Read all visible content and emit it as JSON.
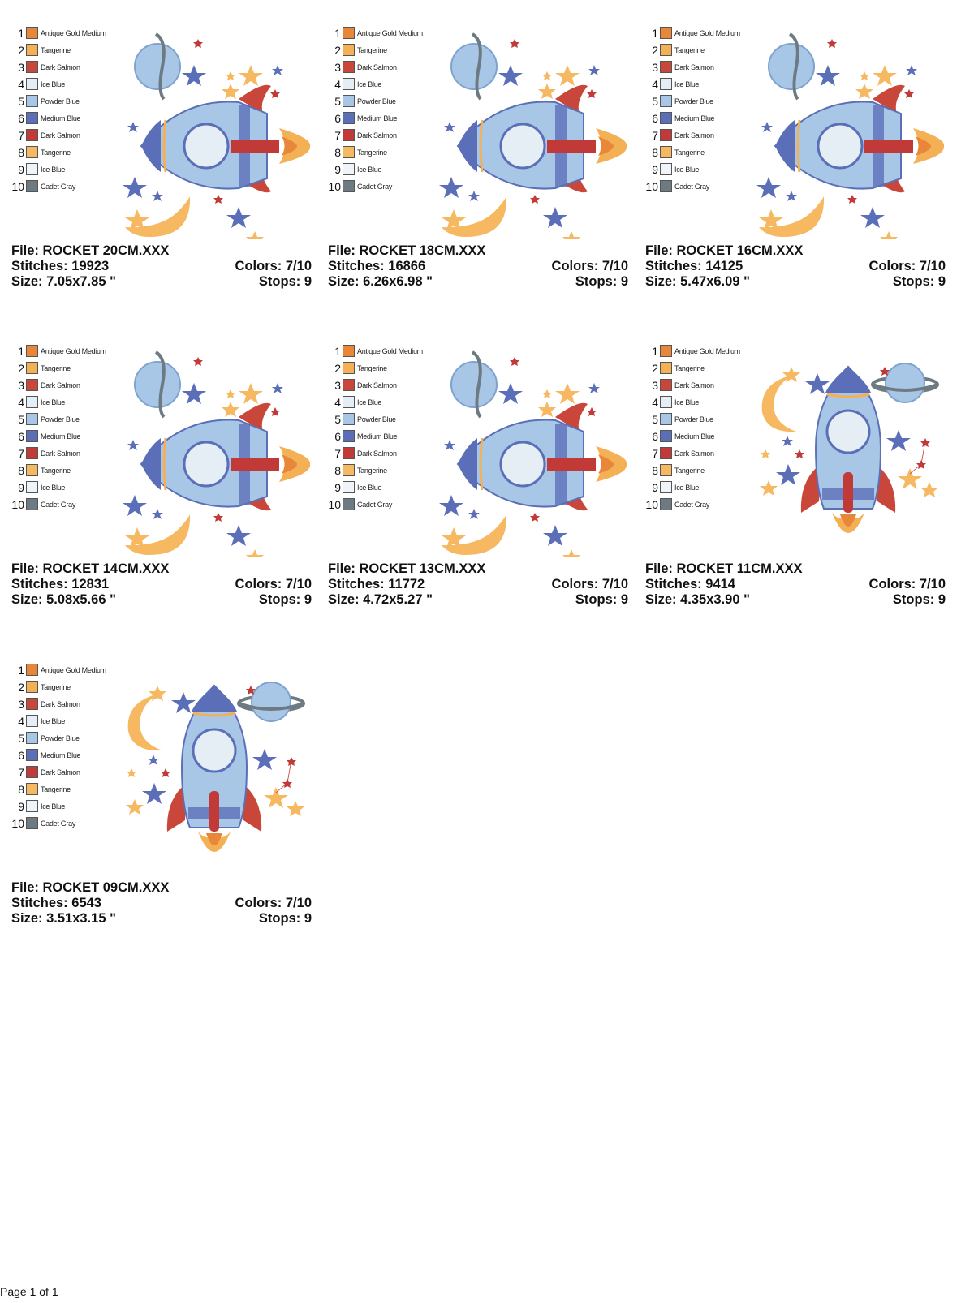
{
  "legend": [
    {
      "num": "1",
      "name": "Antique Gold Medium",
      "color": "#E8873A"
    },
    {
      "num": "2",
      "name": "Tangerine",
      "color": "#F4B055"
    },
    {
      "num": "3",
      "name": "Dark Salmon",
      "color": "#C8473A"
    },
    {
      "num": "4",
      "name": "Ice Blue",
      "color": "#E4EEF4"
    },
    {
      "num": "5",
      "name": "Powder Blue",
      "color": "#A8C6E6"
    },
    {
      "num": "6",
      "name": "Medium Blue",
      "color": "#5B6FB8"
    },
    {
      "num": "7",
      "name": "Dark Salmon",
      "color": "#C23A38"
    },
    {
      "num": "8",
      "name": "Tangerine",
      "color": "#F6B860"
    },
    {
      "num": "9",
      "name": "Ice Blue",
      "color": "#EEF4F8"
    },
    {
      "num": "10",
      "name": "Cadet Gray",
      "color": "#6E7A82"
    }
  ],
  "designs": [
    {
      "file": "File: ROCKET 20CM.XXX",
      "stitches": "Stitches: 19923",
      "colors": "Colors: 7/10",
      "size": "Size: 7.05x7.85 \"",
      "stops": "Stops: 9",
      "orientation": "horizontal"
    },
    {
      "file": "File: ROCKET 18CM.XXX",
      "stitches": "Stitches: 16866",
      "colors": "Colors: 7/10",
      "size": "Size: 6.26x6.98 \"",
      "stops": "Stops: 9",
      "orientation": "horizontal"
    },
    {
      "file": "File: ROCKET 16CM.XXX",
      "stitches": "Stitches: 14125",
      "colors": "Colors: 7/10",
      "size": "Size: 5.47x6.09 \"",
      "stops": "Stops: 9",
      "orientation": "horizontal"
    },
    {
      "file": "File: ROCKET 14CM.XXX",
      "stitches": "Stitches: 12831",
      "colors": "Colors: 7/10",
      "size": "Size: 5.08x5.66 \"",
      "stops": "Stops: 9",
      "orientation": "horizontal"
    },
    {
      "file": "File: ROCKET 13CM.XXX",
      "stitches": "Stitches: 11772",
      "colors": "Colors: 7/10",
      "size": "Size: 4.72x5.27 \"",
      "stops": "Stops: 9",
      "orientation": "horizontal"
    },
    {
      "file": "File: ROCKET 11CM.XXX",
      "stitches": "Stitches: 9414",
      "colors": "Colors: 7/10",
      "size": "Size: 4.35x3.90 \"",
      "stops": "Stops: 9",
      "orientation": "vertical"
    },
    {
      "file": "File: ROCKET 09CM.XXX",
      "stitches": "Stitches: 6543",
      "colors": "Colors: 7/10",
      "size": "Size: 3.51x3.15 \"",
      "stops": "Stops: 9",
      "orientation": "vertical"
    }
  ],
  "footer": {
    "page": "Page 1 of 1"
  }
}
